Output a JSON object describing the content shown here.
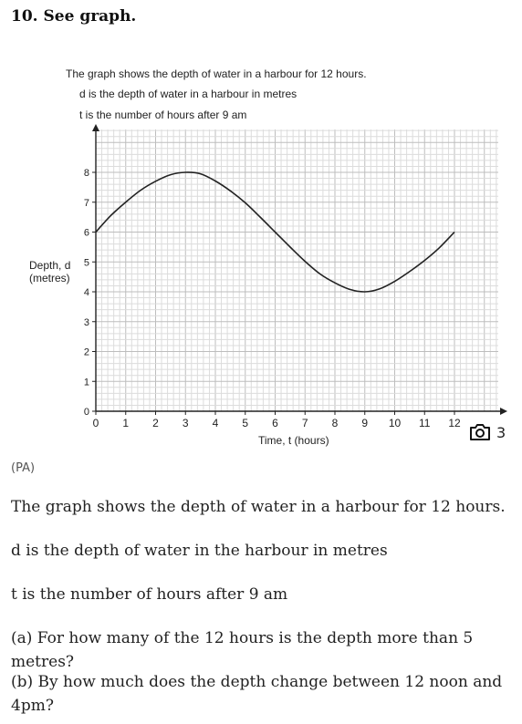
{
  "article": {
    "heading": "10. See graph.",
    "credit": "(PA)",
    "paragraphs": [
      "The graph shows the depth of water in a harbour for 12 hours.",
      "d is the depth of water in the harbour in metres",
      "t is the number of hours after 9 am",
      "(a) For how many of the 12 hours is the depth more than 5 metres?",
      "(b) By how much does the depth change between 12 noon and 4pm?"
    ],
    "gallery": {
      "icon": "camera-icon",
      "count": "3"
    }
  },
  "figure_text": {
    "line1": "The graph shows the depth of water in a harbour for 12 hours.",
    "line2": "d is the depth of water in a harbour in metres",
    "line3": "t is the number of hours after 9 am"
  },
  "chart_data": {
    "type": "line",
    "title": "",
    "xlabel": "Time, t (hours)",
    "ylabel": "Depth, d (metres)",
    "xlim": [
      0,
      12
    ],
    "ylim": [
      0,
      8
    ],
    "xticks": [
      0,
      1,
      2,
      3,
      4,
      5,
      6,
      7,
      8,
      9,
      10,
      11,
      12
    ],
    "yticks": [
      0,
      1,
      2,
      3,
      4,
      5,
      6,
      7,
      8
    ],
    "grid": true,
    "series": [
      {
        "x": [
          0,
          0.5,
          1,
          1.5,
          2,
          2.5,
          3,
          3.5,
          4,
          4.5,
          5,
          5.5,
          6,
          6.5,
          7,
          7.5,
          8,
          8.5,
          9,
          9.5,
          10,
          10.5,
          11,
          11.5,
          12
        ],
        "y": [
          6,
          6.55,
          7.0,
          7.4,
          7.7,
          7.92,
          8,
          7.95,
          7.71,
          7.38,
          6.98,
          6.5,
          6.0,
          5.5,
          5.02,
          4.6,
          4.3,
          4.08,
          4,
          4.1,
          4.35,
          4.68,
          5.05,
          5.48,
          6
        ]
      }
    ],
    "colors": {
      "line": "#222222",
      "grid_minor": "#dcdcdc",
      "grid_major": "#bdbdbd"
    }
  }
}
